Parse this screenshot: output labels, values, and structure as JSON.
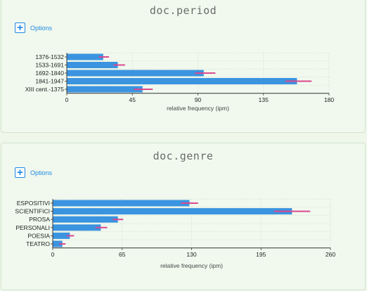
{
  "panels": [
    {
      "title": "doc.period",
      "options_label": "Options",
      "plus_icon": "+"
    },
    {
      "title": "doc.genre",
      "options_label": "Options",
      "plus_icon": "+"
    }
  ],
  "colors": {
    "bar": "#3a94e0",
    "error": "#d9498e",
    "accent": "#1e88e5"
  },
  "chart_data": [
    {
      "type": "bar",
      "orientation": "horizontal",
      "categories": [
        "1376-1532",
        "1533-1691",
        "1692-1840",
        "1841-1947",
        "XIII cent.-1375"
      ],
      "values": [
        25,
        35,
        94,
        158,
        52
      ],
      "errors": [
        [
          22,
          29
        ],
        [
          32,
          40
        ],
        [
          88,
          102
        ],
        [
          150,
          168
        ],
        [
          46,
          59
        ]
      ],
      "xlabel": "relative frequency (ipm)",
      "xlim": [
        0,
        180
      ],
      "xticks": [
        0,
        45,
        90,
        135,
        180
      ],
      "grid": true
    },
    {
      "type": "bar",
      "orientation": "horizontal",
      "categories": [
        "ESPOSITIVI",
        "SCIENTIFICI",
        "PROSA",
        "PERSONALI",
        "POESIA",
        "TEATRO"
      ],
      "values": [
        128,
        224,
        61,
        45,
        16,
        9
      ],
      "errors": [
        [
          120,
          136
        ],
        [
          207,
          241
        ],
        [
          56,
          66
        ],
        [
          40,
          51
        ],
        [
          13,
          20
        ],
        [
          6,
          12
        ]
      ],
      "xlabel": "relative frequency (ipm)",
      "xlim": [
        0,
        260
      ],
      "xticks": [
        0,
        65,
        130,
        195,
        260
      ],
      "grid": true
    }
  ]
}
